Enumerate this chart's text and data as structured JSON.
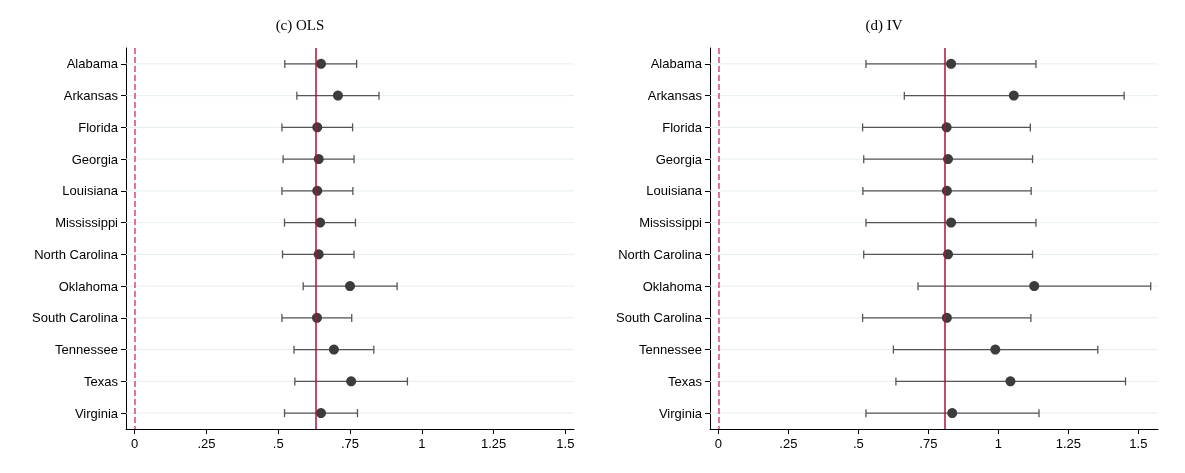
{
  "chart_data": [
    {
      "type": "scatter",
      "title": "(c) OLS",
      "orientation": "horizontal",
      "categories": [
        "Alabama",
        "Arkansas",
        "Florida",
        "Georgia",
        "Louisiana",
        "Mississippi",
        "North Carolina",
        "Oklahoma",
        "South Carolina",
        "Tennessee",
        "Texas",
        "Virginia"
      ],
      "series": [
        {
          "color": "#3c3c3c",
          "values": [
            0.649,
            0.708,
            0.636,
            0.641,
            0.636,
            0.646,
            0.641,
            0.75,
            0.635,
            0.694,
            0.754,
            0.649
          ],
          "errors": [
            [
              0.523,
              0.773
            ],
            [
              0.565,
              0.851
            ],
            [
              0.513,
              0.759
            ],
            [
              0.517,
              0.764
            ],
            [
              0.513,
              0.76
            ],
            [
              0.522,
              0.769
            ],
            [
              0.515,
              0.764
            ],
            [
              0.587,
              0.914
            ],
            [
              0.513,
              0.756
            ],
            [
              0.555,
              0.833
            ],
            [
              0.558,
              0.95
            ],
            [
              0.522,
              0.776
            ]
          ]
        }
      ],
      "xlim": [
        -0.03,
        1.53
      ],
      "xticks": [
        0,
        {
          "value": 0.25,
          "label": ".25"
        },
        {
          "value": 0.5,
          "label": ".5"
        },
        {
          "value": 0.75,
          "label": ".75"
        },
        1,
        1.25,
        1.5
      ],
      "ref_lines": [
        {
          "axis": "x",
          "value": 0,
          "color": "#d9486e",
          "line_style": "dashed"
        },
        {
          "axis": "x",
          "value": 0.632,
          "color": "#b0103a",
          "line_style": "solid"
        }
      ],
      "grid": "y",
      "marker": "circle"
    },
    {
      "type": "scatter",
      "title": "(d) IV",
      "orientation": "horizontal",
      "categories": [
        "Alabama",
        "Arkansas",
        "Florida",
        "Georgia",
        "Louisiana",
        "Mississippi",
        "North Carolina",
        "Oklahoma",
        "South Carolina",
        "Tennessee",
        "Texas",
        "Virginia"
      ],
      "series": [
        {
          "color": "#3c3c3c",
          "values": [
            0.831,
            1.055,
            0.815,
            0.82,
            0.816,
            0.831,
            0.82,
            1.128,
            0.816,
            0.989,
            1.043,
            0.835
          ],
          "errors": [
            [
              0.527,
              1.134
            ],
            [
              0.664,
              1.449
            ],
            [
              0.515,
              1.114
            ],
            [
              0.519,
              1.122
            ],
            [
              0.516,
              1.117
            ],
            [
              0.527,
              1.134
            ],
            [
              0.519,
              1.122
            ],
            [
              0.713,
              1.544
            ],
            [
              0.515,
              1.116
            ],
            [
              0.625,
              1.355
            ],
            [
              0.634,
              1.454
            ],
            [
              0.527,
              1.145
            ]
          ]
        }
      ],
      "xlim": [
        -0.03,
        1.57
      ],
      "xticks": [
        0,
        {
          "value": 0.25,
          "label": ".25"
        },
        {
          "value": 0.5,
          "label": ".5"
        },
        {
          "value": 0.75,
          "label": ".75"
        },
        1,
        1.25,
        1.5
      ],
      "ref_lines": [
        {
          "axis": "x",
          "value": 0,
          "color": "#d9486e",
          "line_style": "dashed"
        },
        {
          "axis": "x",
          "value": 0.813,
          "color": "#b0103a",
          "line_style": "solid"
        }
      ],
      "grid": "y",
      "marker": "circle"
    }
  ]
}
